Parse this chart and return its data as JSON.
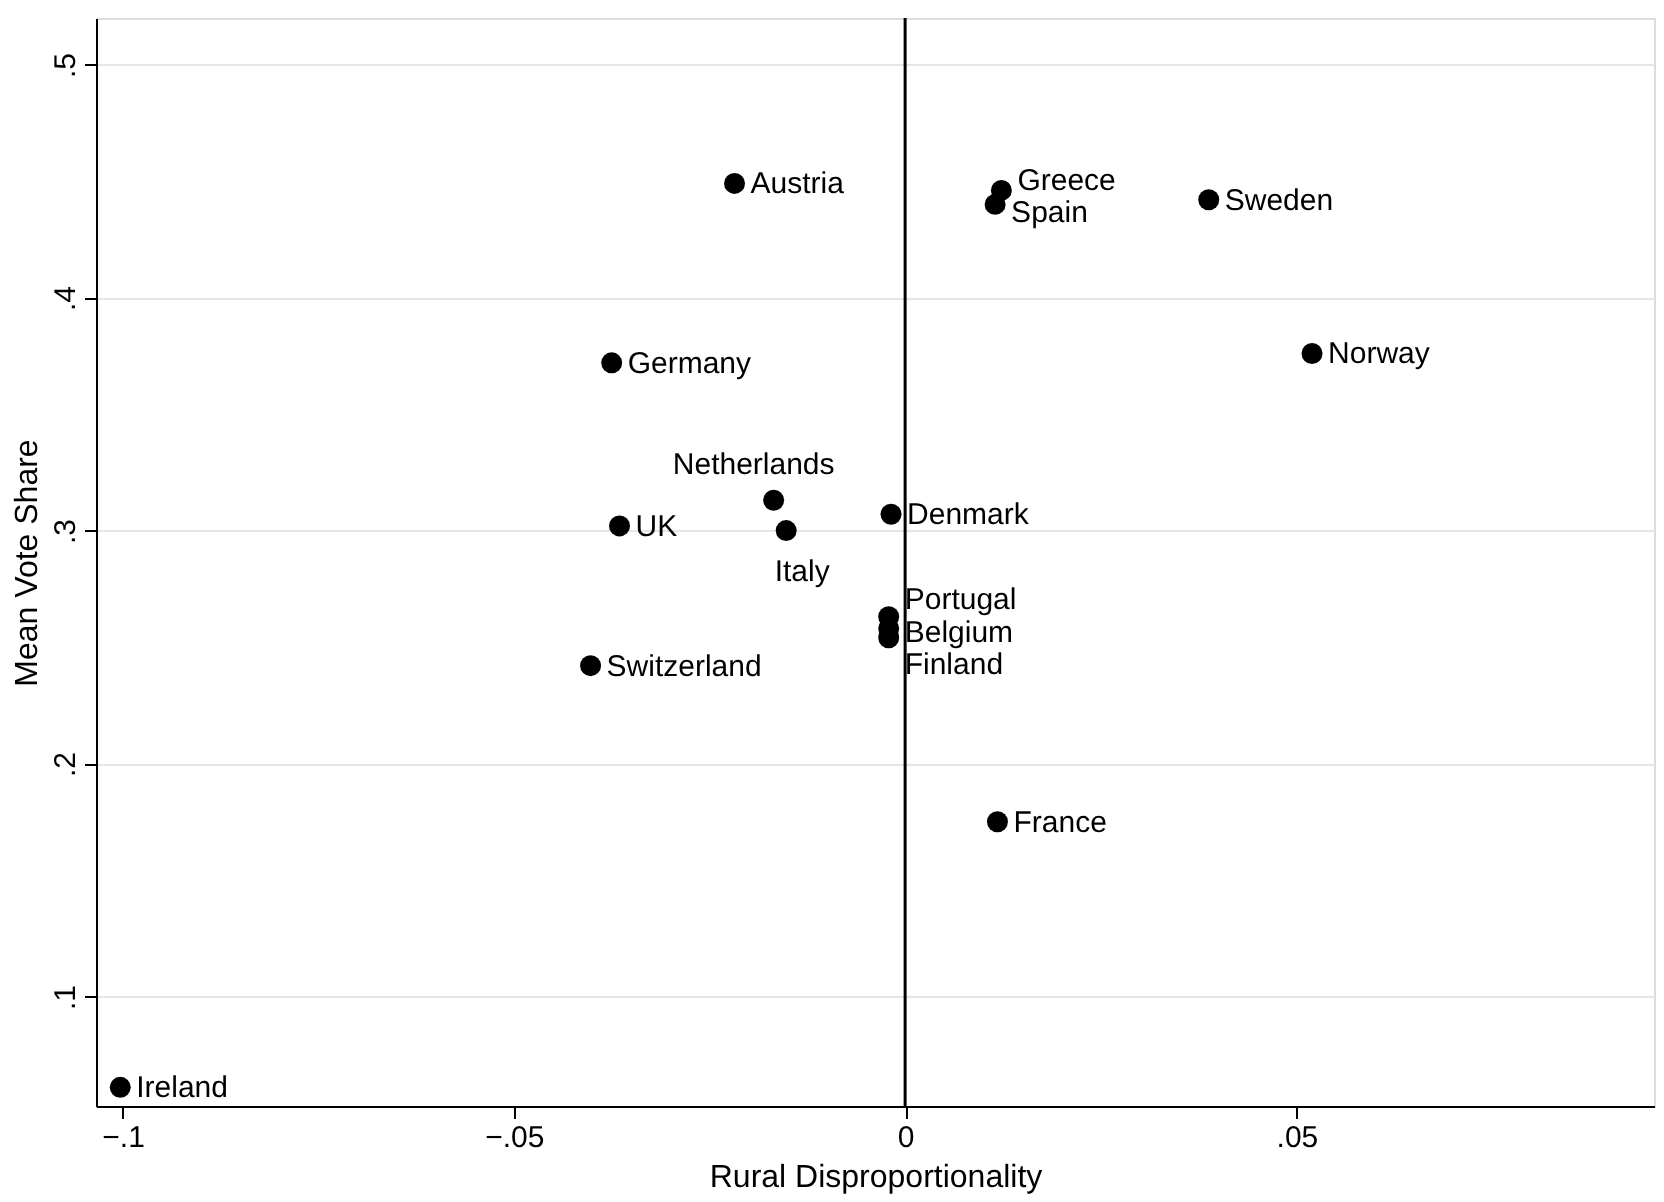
{
  "chart_data": {
    "type": "scatter",
    "xlabel": "Rural Disproportionality",
    "ylabel": "Mean Vote Share",
    "x": [
      -0.0218,
      0.0123,
      0.0115,
      0.0388,
      -0.0375,
      0.052,
      -0.0168,
      -0.0365,
      -0.0152,
      -0.0018,
      -0.0021,
      -0.0021,
      -0.0021,
      -0.0402,
      0.0118,
      -0.1003
    ],
    "series": [
      {
        "color": "#000000",
        "values": [
          0.449,
          0.446,
          0.44,
          0.442,
          0.372,
          0.376,
          0.313,
          0.302,
          0.3,
          0.307,
          0.263,
          0.258,
          0.254,
          0.242,
          0.175,
          0.061
        ],
        "value_labels": [
          "Austria",
          "Greece",
          "Spain",
          "Sweden",
          "Germany",
          "Norway",
          "Netherlands",
          "UK",
          "Italy",
          "Denmark",
          "Portugal",
          "Belgium",
          "Finland",
          "Switzerland",
          "France",
          "Ireland"
        ]
      }
    ],
    "xlim": [
      -0.1034,
      0.0957
    ],
    "ylim": [
      0.053,
      0.52
    ],
    "xticks": [
      {
        "value": -0.1,
        "label": "−.1"
      },
      {
        "value": -0.05,
        "label": "−.05"
      },
      {
        "value": 0,
        "label": "0"
      },
      {
        "value": 0.05,
        "label": ".05"
      }
    ],
    "yticks": [
      {
        "value": 0.1,
        "label": ".1"
      },
      {
        "value": 0.2,
        "label": ".2"
      },
      {
        "value": 0.3,
        "label": ".3"
      },
      {
        "value": 0.4,
        "label": ".4"
      },
      {
        "value": 0.5,
        "label": ".5"
      }
    ],
    "ref_lines": [
      {
        "axis": "x",
        "value": 0,
        "color": "#000000"
      }
    ],
    "grid": "y",
    "marker": "circle"
  }
}
